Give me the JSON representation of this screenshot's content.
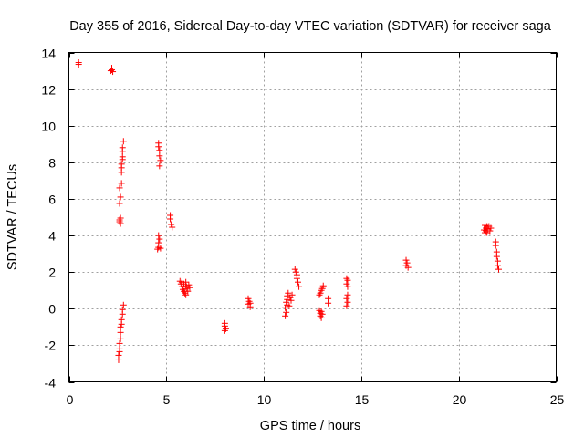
{
  "chart_data": {
    "type": "scatter",
    "title": "Day 355 of 2016, Sidereal Day-to-day VTEC variation (SDTVAR) for receiver saga",
    "xlabel": "GPS time / hours",
    "ylabel": "SDTVAR / TECUs",
    "xlim": [
      0,
      25
    ],
    "ylim": [
      -4,
      14
    ],
    "xticks": [
      0,
      5,
      10,
      15,
      20,
      25
    ],
    "yticks": [
      -4,
      -2,
      0,
      2,
      4,
      6,
      8,
      10,
      12,
      14
    ],
    "xtick_labels": [
      "0",
      "5",
      "10",
      "15",
      "20",
      "25"
    ],
    "ytick_labels": [
      "-4",
      "-2",
      "0",
      "2",
      "4",
      "6",
      "8",
      "10",
      "12",
      "14"
    ],
    "grid": true,
    "marker": "+",
    "series_color": "#ff0000",
    "series": [
      {
        "name": "SDTVAR",
        "points": [
          [
            0.5,
            13.45
          ],
          [
            0.5,
            13.35
          ],
          [
            2.2,
            13.15
          ],
          [
            2.2,
            13.05
          ],
          [
            2.25,
            12.95
          ],
          [
            2.15,
            13.0
          ],
          [
            2.6,
            4.75
          ],
          [
            2.6,
            4.85
          ],
          [
            2.65,
            4.95
          ],
          [
            2.65,
            4.65
          ],
          [
            2.6,
            5.75
          ],
          [
            2.65,
            6.1
          ],
          [
            2.6,
            6.6
          ],
          [
            2.7,
            6.85
          ],
          [
            2.7,
            7.45
          ],
          [
            2.7,
            7.7
          ],
          [
            2.7,
            7.9
          ],
          [
            2.75,
            8.15
          ],
          [
            2.75,
            8.3
          ],
          [
            2.75,
            8.6
          ],
          [
            2.75,
            8.8
          ],
          [
            2.8,
            9.15
          ],
          [
            2.55,
            -2.8
          ],
          [
            2.55,
            -2.55
          ],
          [
            2.6,
            -2.35
          ],
          [
            2.6,
            -2.2
          ],
          [
            2.6,
            -1.9
          ],
          [
            2.65,
            -1.65
          ],
          [
            2.65,
            -1.3
          ],
          [
            2.65,
            -1.0
          ],
          [
            2.7,
            -0.85
          ],
          [
            2.7,
            -0.6
          ],
          [
            2.75,
            -0.3
          ],
          [
            2.75,
            -0.05
          ],
          [
            2.8,
            0.2
          ],
          [
            4.6,
            9.05
          ],
          [
            4.6,
            8.85
          ],
          [
            4.65,
            8.65
          ],
          [
            4.65,
            8.35
          ],
          [
            4.7,
            8.1
          ],
          [
            4.65,
            7.8
          ],
          [
            4.55,
            3.25
          ],
          [
            4.6,
            3.35
          ],
          [
            4.7,
            3.3
          ],
          [
            4.6,
            3.6
          ],
          [
            4.65,
            3.8
          ],
          [
            4.6,
            4.0
          ],
          [
            5.2,
            5.1
          ],
          [
            5.2,
            4.9
          ],
          [
            5.25,
            4.6
          ],
          [
            5.3,
            4.45
          ],
          [
            5.7,
            1.5
          ],
          [
            5.75,
            1.35
          ],
          [
            5.8,
            1.2
          ],
          [
            5.85,
            1.05
          ],
          [
            5.9,
            0.95
          ],
          [
            5.95,
            0.85
          ],
          [
            6.0,
            0.75
          ],
          [
            5.9,
            1.35
          ],
          [
            6.0,
            1.25
          ],
          [
            6.05,
            1.1
          ],
          [
            6.1,
            0.95
          ],
          [
            6.15,
            1.3
          ],
          [
            6.2,
            1.15
          ],
          [
            5.8,
            1.45
          ],
          [
            6.0,
            1.45
          ],
          [
            8.0,
            -0.8
          ],
          [
            8.0,
            -0.95
          ],
          [
            8.05,
            -1.1
          ],
          [
            8.0,
            -1.2
          ],
          [
            9.2,
            0.55
          ],
          [
            9.25,
            0.4
          ],
          [
            9.2,
            0.25
          ],
          [
            9.3,
            0.3
          ],
          [
            9.3,
            0.1
          ],
          [
            11.1,
            -0.4
          ],
          [
            11.15,
            -0.2
          ],
          [
            11.1,
            0.05
          ],
          [
            11.2,
            0.2
          ],
          [
            11.15,
            0.35
          ],
          [
            11.2,
            0.5
          ],
          [
            11.2,
            0.7
          ],
          [
            11.25,
            0.85
          ],
          [
            11.35,
            0.6
          ],
          [
            11.4,
            0.45
          ],
          [
            11.45,
            0.75
          ],
          [
            11.3,
            0.15
          ],
          [
            11.6,
            2.15
          ],
          [
            11.65,
            2.0
          ],
          [
            11.7,
            1.85
          ],
          [
            11.7,
            1.65
          ],
          [
            11.75,
            1.45
          ],
          [
            11.8,
            1.2
          ],
          [
            12.85,
            -0.1
          ],
          [
            12.9,
            -0.25
          ],
          [
            12.9,
            -0.4
          ],
          [
            12.95,
            -0.5
          ],
          [
            13.0,
            -0.3
          ],
          [
            12.95,
            -0.15
          ],
          [
            12.85,
            0.75
          ],
          [
            12.9,
            0.85
          ],
          [
            12.95,
            1.0
          ],
          [
            13.0,
            1.1
          ],
          [
            13.05,
            1.25
          ],
          [
            13.3,
            0.55
          ],
          [
            13.3,
            0.3
          ],
          [
            14.25,
            1.65
          ],
          [
            14.3,
            1.55
          ],
          [
            14.25,
            1.35
          ],
          [
            14.3,
            1.2
          ],
          [
            14.3,
            0.75
          ],
          [
            14.25,
            0.55
          ],
          [
            14.3,
            0.35
          ],
          [
            14.25,
            0.15
          ],
          [
            17.3,
            2.65
          ],
          [
            17.35,
            2.5
          ],
          [
            17.3,
            2.35
          ],
          [
            17.4,
            2.25
          ],
          [
            21.35,
            4.55
          ],
          [
            21.4,
            4.4
          ],
          [
            21.4,
            4.25
          ],
          [
            21.45,
            4.15
          ],
          [
            21.5,
            4.35
          ],
          [
            21.55,
            4.5
          ],
          [
            21.6,
            4.25
          ],
          [
            21.65,
            4.4
          ],
          [
            21.45,
            4.5
          ],
          [
            21.3,
            4.3
          ],
          [
            21.35,
            4.15
          ],
          [
            21.9,
            3.65
          ],
          [
            21.9,
            3.45
          ],
          [
            21.95,
            3.1
          ],
          [
            21.95,
            2.85
          ],
          [
            22.0,
            2.6
          ],
          [
            22.0,
            2.35
          ],
          [
            22.05,
            2.15
          ]
        ]
      }
    ]
  }
}
